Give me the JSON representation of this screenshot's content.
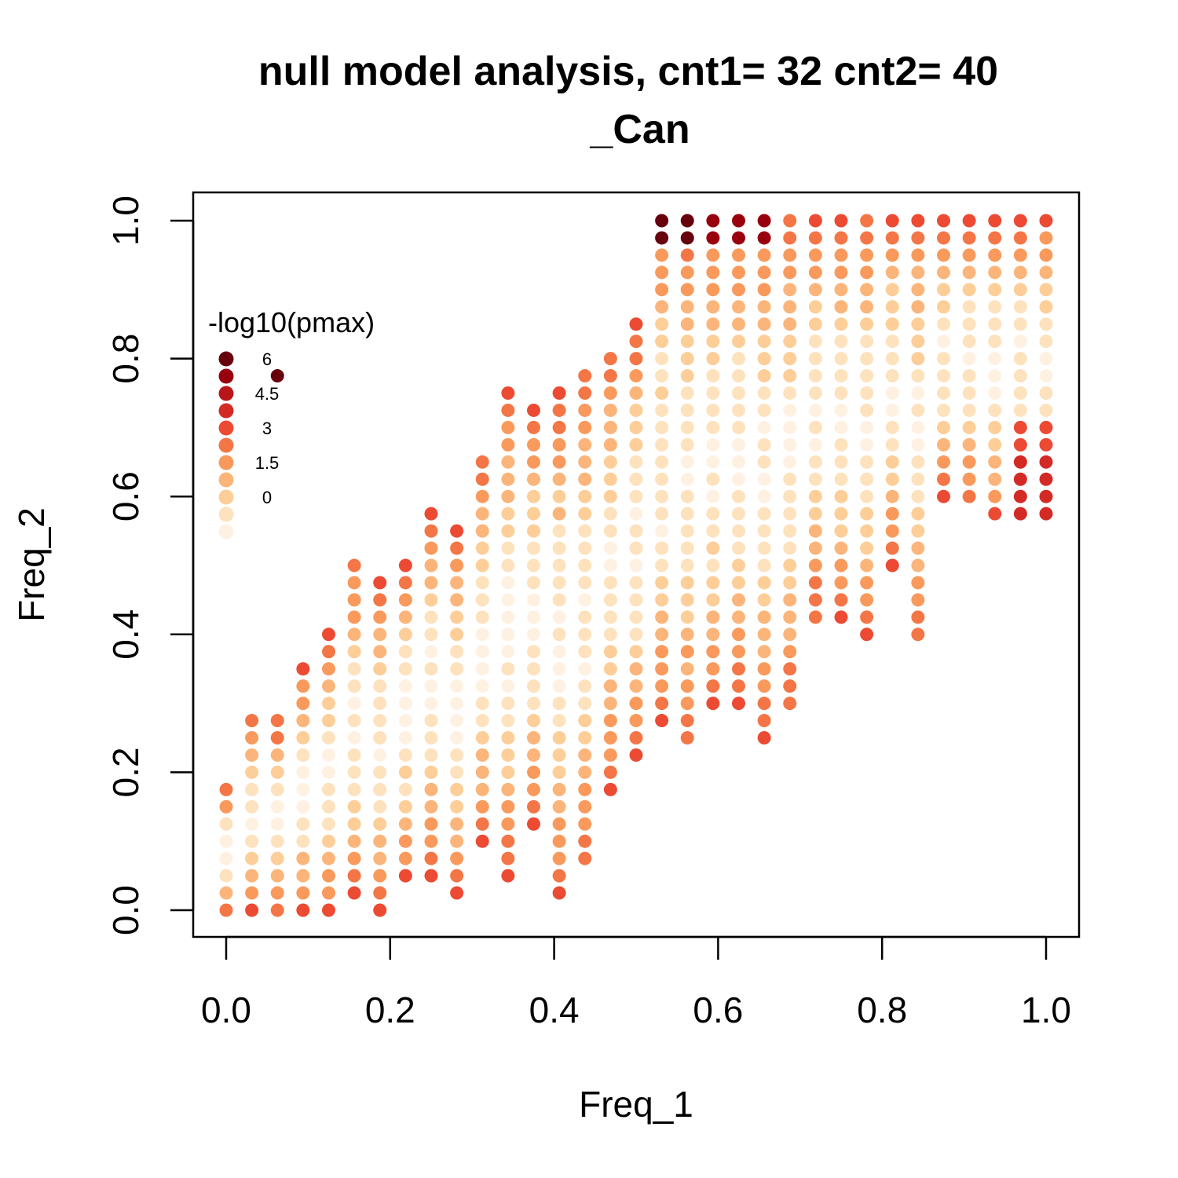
{
  "chart_data": {
    "type": "scatter",
    "title_lines": [
      "null model analysis, cnt1= 32 cnt2= 40",
      "_Can"
    ],
    "xlabel": "Freq_1",
    "ylabel": "Freq_2",
    "xlim": [
      -0.02,
      1.02
    ],
    "ylim": [
      -0.04,
      1.04
    ],
    "x_ticks": [
      0.0,
      0.2,
      0.4,
      0.6,
      0.8,
      1.0
    ],
    "x_tick_labels": [
      "0.0",
      "0.2",
      "0.4",
      "0.6",
      "0.8",
      "1.0"
    ],
    "y_ticks": [
      0.0,
      0.2,
      0.4,
      0.6,
      0.8,
      1.0
    ],
    "y_tick_labels": [
      "0.0",
      "0.2",
      "0.4",
      "0.6",
      "0.8",
      "1.0"
    ],
    "grid": false,
    "legend": {
      "title": "-log10(pmax)",
      "placement": "top-left",
      "labels": [
        "6",
        "4.5",
        "3",
        "1.5",
        "0"
      ],
      "colors": [
        "#67000d",
        "#99000d",
        "#b9151a",
        "#d42a26",
        "#ec4a33",
        "#f47646",
        "#f99a5c",
        "#fbb57a",
        "#fdce98",
        "#fde2bd",
        "#fff1e2"
      ]
    },
    "color_scale": [
      "#fff1e2",
      "#fde2bd",
      "#fdce98",
      "#fbb57a",
      "#f99a5c",
      "#f47646",
      "#ec4a33",
      "#d42a26",
      "#b9151a",
      "#99000d",
      "#67000d"
    ],
    "value_range": [
      0,
      6
    ],
    "grid_steps": {
      "x_count": 32,
      "y_count": 40
    },
    "points_note": "columns: i = count in group 1 (x = i/32), y-range j0..j1 (y = j/40), ridge center & noise define -log10(pmax)",
    "columns": [
      {
        "i": 0,
        "j0": 0,
        "j1": 7
      },
      {
        "i": 1,
        "j0": 0,
        "j1": 11
      },
      {
        "i": 2,
        "j0": 0,
        "j1": 11
      },
      {
        "i": 3,
        "j0": 0,
        "j1": 14
      },
      {
        "i": 4,
        "j0": 0,
        "j1": 16
      },
      {
        "i": 5,
        "j0": 1,
        "j1": 20
      },
      {
        "i": 6,
        "j0": 0,
        "j1": 19
      },
      {
        "i": 7,
        "j0": 2,
        "j1": 20
      },
      {
        "i": 8,
        "j0": 2,
        "j1": 23
      },
      {
        "i": 9,
        "j0": 1,
        "j1": 22
      },
      {
        "i": 10,
        "j0": 4,
        "j1": 26
      },
      {
        "i": 11,
        "j0": 2,
        "j1": 30
      },
      {
        "i": 12,
        "j0": 5,
        "j1": 29
      },
      {
        "i": 13,
        "j0": 1,
        "j1": 30
      },
      {
        "i": 14,
        "j0": 3,
        "j1": 31
      },
      {
        "i": 15,
        "j0": 7,
        "j1": 32
      },
      {
        "i": 16,
        "j0": 9,
        "j1": 34
      },
      {
        "i": 17,
        "j0": 11,
        "j1": 40
      },
      {
        "i": 18,
        "j0": 10,
        "j1": 40
      },
      {
        "i": 19,
        "j0": 12,
        "j1": 40
      },
      {
        "i": 20,
        "j0": 12,
        "j1": 40
      },
      {
        "i": 21,
        "j0": 10,
        "j1": 40
      },
      {
        "i": 22,
        "j0": 12,
        "j1": 40
      },
      {
        "i": 23,
        "j0": 17,
        "j1": 40
      },
      {
        "i": 24,
        "j0": 17,
        "j1": 40
      },
      {
        "i": 25,
        "j0": 16,
        "j1": 40
      },
      {
        "i": 26,
        "j0": 20,
        "j1": 40
      },
      {
        "i": 27,
        "j0": 16,
        "j1": 40
      },
      {
        "i": 28,
        "j0": 24,
        "j1": 40
      },
      {
        "i": 29,
        "j0": 24,
        "j1": 40
      },
      {
        "i": 30,
        "j0": 23,
        "j1": 40
      },
      {
        "i": 31,
        "j0": 23,
        "j1": 40
      },
      {
        "i": 32,
        "j0": 23,
        "j1": 40
      }
    ]
  }
}
